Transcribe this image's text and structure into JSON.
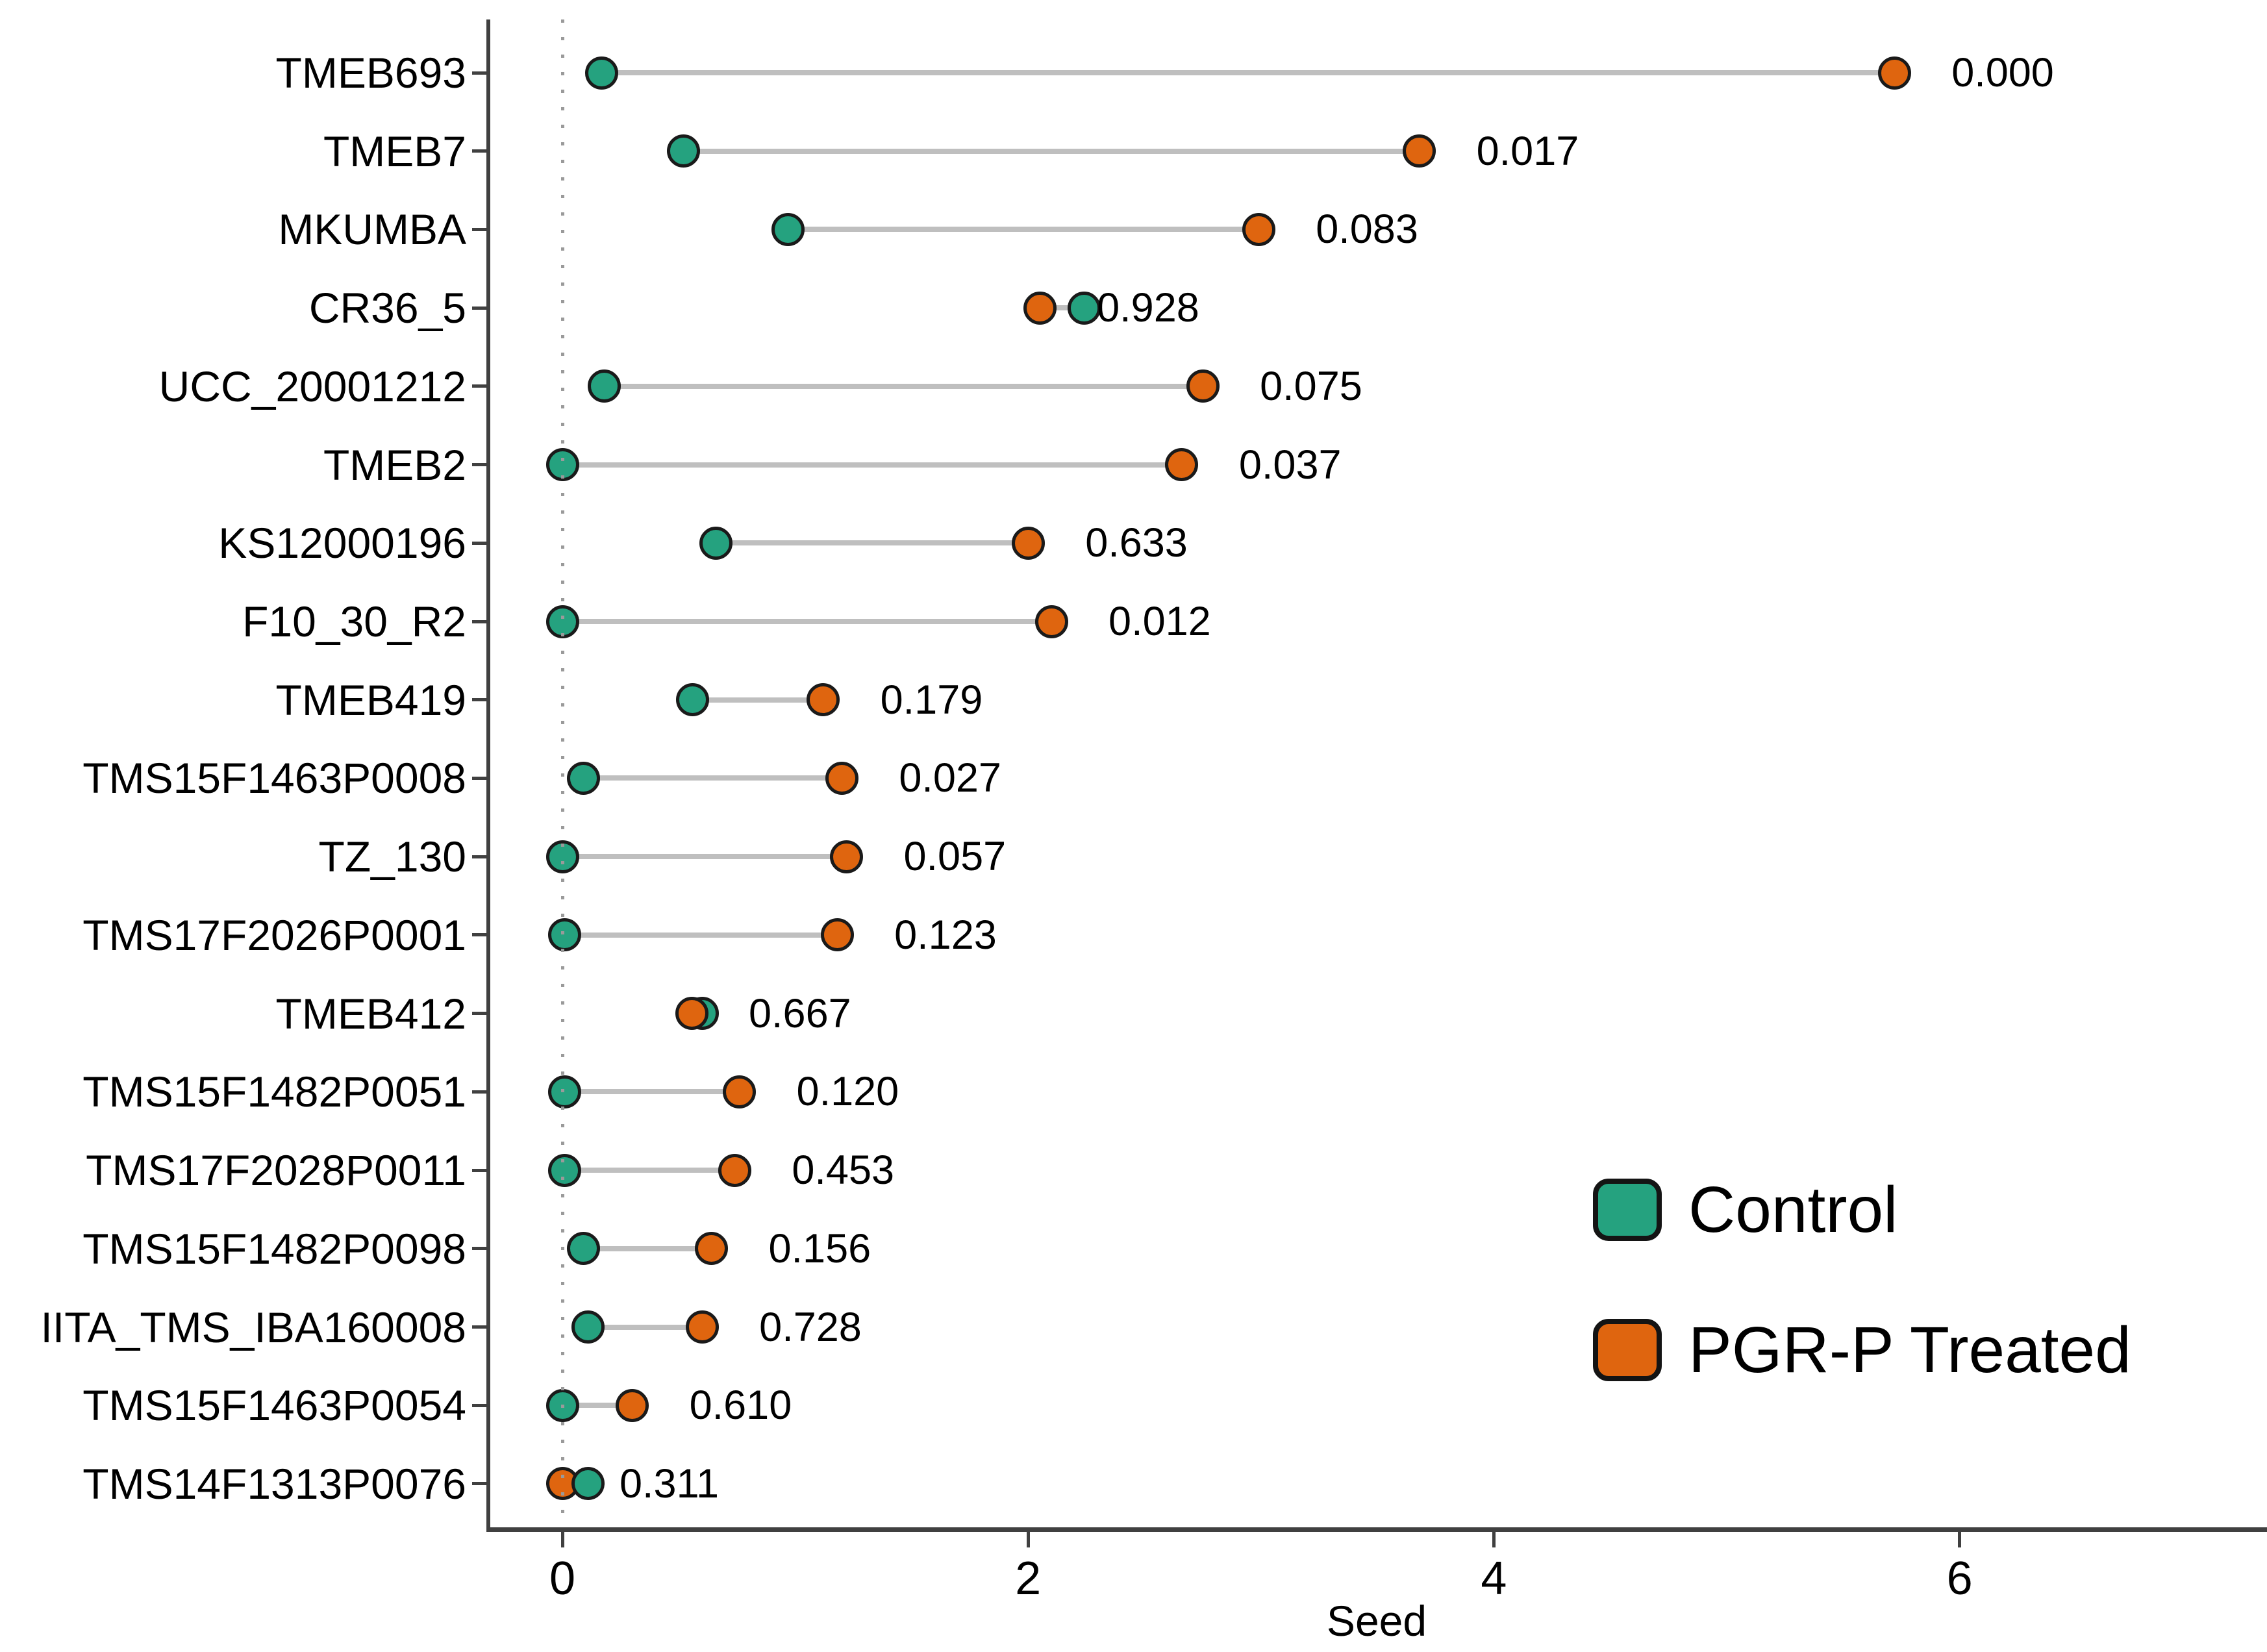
{
  "chart_data": {
    "type": "dumbbell",
    "title": "",
    "xlabel": "Seed",
    "ylabel": "",
    "xticks": [
      0,
      2,
      4,
      6
    ],
    "xlim": [
      -0.31,
      7.32
    ],
    "zero_reference_line": 0,
    "grid": false,
    "legend_position": "inside-bottom-right",
    "legend": [
      {
        "label": "Control",
        "color": "#25A27F"
      },
      {
        "label": "PGR-P Treated",
        "color": "#DF650F"
      }
    ],
    "colors": {
      "control": "#25A27F",
      "treated": "#DF650F",
      "dot_border": "#1a1a1a",
      "connector": "#bfbfbf",
      "axis": "#404040",
      "zero_line": "#9a9a9a",
      "text": "#000000"
    },
    "rows": [
      {
        "label": "TMEB693",
        "control": 0.17,
        "treated": 5.72,
        "p_label": "0.000"
      },
      {
        "label": "TMEB7",
        "control": 0.52,
        "treated": 3.68,
        "p_label": "0.017"
      },
      {
        "label": "MKUMBA",
        "control": 0.97,
        "treated": 2.99,
        "p_label": "0.083"
      },
      {
        "label": "CR36_5",
        "control": 2.24,
        "treated": 2.05,
        "p_label": "0.928"
      },
      {
        "label": "UCC_20001212",
        "control": 0.18,
        "treated": 2.75,
        "p_label": "0.075"
      },
      {
        "label": "TMEB2",
        "control": 0.0,
        "treated": 2.66,
        "p_label": "0.037"
      },
      {
        "label": "KS12000196",
        "control": 0.66,
        "treated": 2.0,
        "p_label": "0.633"
      },
      {
        "label": "F10_30_R2",
        "control": 0.0,
        "treated": 2.1,
        "p_label": "0.012"
      },
      {
        "label": "TMEB419",
        "control": 0.56,
        "treated": 1.12,
        "p_label": "0.179"
      },
      {
        "label": "TMS15F1463P0008",
        "control": 0.09,
        "treated": 1.2,
        "p_label": "0.027"
      },
      {
        "label": "TZ_130",
        "control": 0.0,
        "treated": 1.22,
        "p_label": "0.057"
      },
      {
        "label": "TMS17F2026P0001",
        "control": 0.01,
        "treated": 1.18,
        "p_label": "0.123"
      },
      {
        "label": "TMEB412",
        "control": 0.6,
        "treated": 0.555,
        "p_label": "0.667",
        "top": "treated"
      },
      {
        "label": "TMS15F1482P0051",
        "control": 0.01,
        "treated": 0.76,
        "p_label": "0.120"
      },
      {
        "label": "TMS17F2028P0011",
        "control": 0.01,
        "treated": 0.74,
        "p_label": "0.453"
      },
      {
        "label": "TMS15F1482P0098",
        "control": 0.09,
        "treated": 0.64,
        "p_label": "0.156"
      },
      {
        "label": "IITA_TMS_IBA160008",
        "control": 0.11,
        "treated": 0.6,
        "p_label": "0.728"
      },
      {
        "label": "TMS15F1463P0054",
        "control": 0.0,
        "treated": 0.3,
        "p_label": "0.610"
      },
      {
        "label": "TMS14F1313P0076",
        "control": 0.11,
        "treated": 0.0,
        "p_label": "0.311",
        "top": "control"
      }
    ]
  }
}
